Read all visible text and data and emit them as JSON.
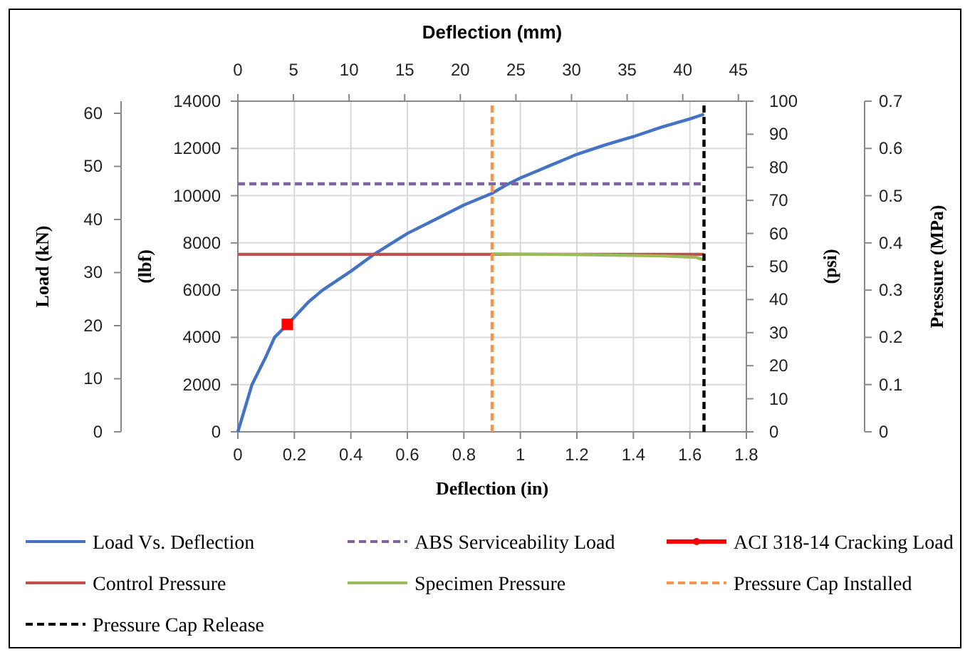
{
  "chart_data": {
    "type": "line",
    "xlabel": "Deflection (in)",
    "x2label": "Deflection (mm)",
    "ylabel": "(lbf)",
    "y2label": "(psi)",
    "y3label": "Load (kN)",
    "annotations": [
      "Pressure (MPa)",
      "0",
      "0.1",
      "0.2",
      "0.3",
      "0.4",
      "0.5",
      "0.6",
      "0.7"
    ],
    "xlim": [
      0,
      1.8
    ],
    "xticks": [
      0,
      0.2,
      0.4,
      0.6,
      0.8,
      1,
      1.2,
      1.4,
      1.6,
      1.8
    ],
    "x2lim": [
      0,
      45.72
    ],
    "x2ticks": [
      0,
      5,
      10,
      15,
      20,
      25,
      30,
      35,
      40,
      45
    ],
    "ylim": [
      0,
      14000
    ],
    "yticks": [
      0,
      2000,
      4000,
      6000,
      8000,
      10000,
      12000,
      14000
    ],
    "y2lim": [
      0,
      100
    ],
    "y2ticks": [
      0,
      10,
      20,
      30,
      40,
      50,
      60,
      70,
      80,
      90,
      100
    ],
    "y3lim": [
      0,
      62.28
    ],
    "y3ticks": [
      0,
      10,
      20,
      30,
      40,
      50,
      60
    ],
    "grid": true,
    "legend": "bottom",
    "series": [
      {
        "name": "Load Vs. Deflection",
        "color": "#4472c4",
        "line_style": "solid",
        "x": [
          0,
          0.05,
          0.1,
          0.13,
          0.18,
          0.25,
          0.3,
          0.4,
          0.48,
          0.6,
          0.7,
          0.8,
          0.9,
          0.95,
          1.0,
          1.1,
          1.16,
          1.2,
          1.3,
          1.4,
          1.5,
          1.6,
          1.65
        ],
        "values": [
          0,
          2000,
          3200,
          4000,
          4600,
          5500,
          6000,
          6800,
          7500,
          8400,
          9000,
          9600,
          10100,
          10450,
          10750,
          11250,
          11550,
          11750,
          12150,
          12500,
          12900,
          13250,
          13450
        ]
      },
      {
        "name": "ABS Serviceability Load",
        "color": "#8064a2",
        "line_style": "dashed",
        "x": [
          0,
          1.65
        ],
        "values": [
          10500,
          10500
        ]
      },
      {
        "name": "ACI 318-14 Cracking Load",
        "color": "#ff0000",
        "type": "scatter",
        "marker": "square",
        "x": [
          0.175
        ],
        "values": [
          4550
        ]
      },
      {
        "name": "Control Pressure",
        "color": "#c0504d",
        "line_style": "solid",
        "axis": "y2",
        "x": [
          0,
          1.65
        ],
        "values": [
          53.7,
          53.7
        ]
      },
      {
        "name": "Specimen Pressure",
        "color": "#9bbb59",
        "line_style": "solid",
        "axis": "y2",
        "x": [
          0.9,
          1.2,
          1.5,
          1.62,
          1.65
        ],
        "values": [
          53.8,
          53.6,
          53.2,
          52.8,
          52
        ]
      },
      {
        "name": "Pressure Cap Installed",
        "color": "#f79646",
        "line_style": "dashed",
        "x": [
          0.9,
          0.9
        ],
        "values": [
          0,
          14000
        ]
      },
      {
        "name": "Pressure Cap Release",
        "color": "#000000",
        "line_style": "dashed",
        "x": [
          1.65,
          1.65
        ],
        "values": [
          0,
          14000
        ]
      }
    ]
  }
}
